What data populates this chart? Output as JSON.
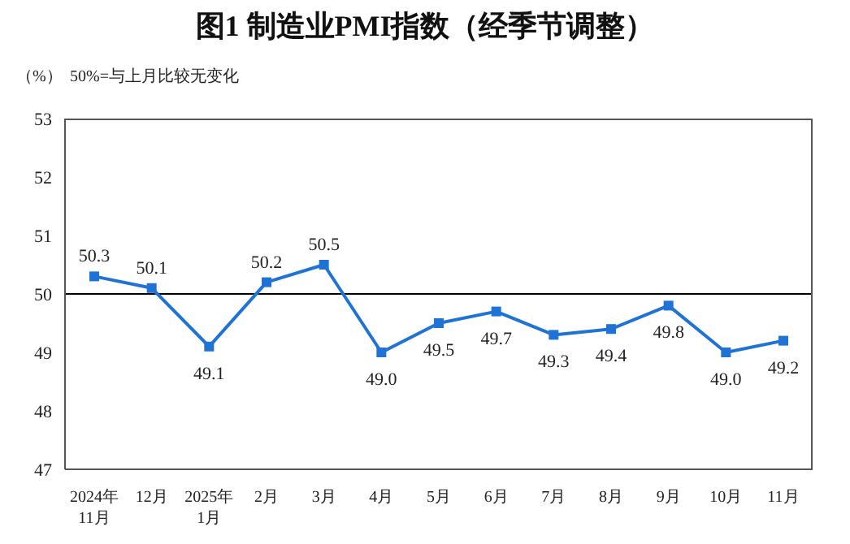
{
  "chart_data": {
    "type": "line",
    "title": "图1  制造业PMI指数（经季节调整）",
    "ylabel": "（%）",
    "annotations": [
      "50%=与上月比较无变化"
    ],
    "categories": [
      "2024年\n11月",
      "12月",
      "2025年\n1月",
      "2月",
      "3月",
      "4月",
      "5月",
      "6月",
      "7月",
      "8月",
      "9月",
      "10月",
      "11月"
    ],
    "series": [
      {
        "color": "#1f73d6",
        "values": [
          50.3,
          50.1,
          49.1,
          50.2,
          50.5,
          49.0,
          49.5,
          49.7,
          49.3,
          49.4,
          49.8,
          49.0,
          49.2
        ]
      }
    ],
    "ylim": [
      47,
      53
    ],
    "yticks": [
      47,
      48,
      49,
      50,
      51,
      52,
      53
    ],
    "ref_lines": [
      {
        "axis": "y",
        "value": 50,
        "color": "#000000"
      }
    ],
    "value_labels": [
      "50.3",
      "50.1",
      "49.1",
      "50.2",
      "50.5",
      "49.0",
      "49.5",
      "49.7",
      "49.3",
      "49.4",
      "49.8",
      "49.0",
      "49.2"
    ],
    "marker": "square",
    "line_style": "solid",
    "grid": false,
    "legend": false
  }
}
